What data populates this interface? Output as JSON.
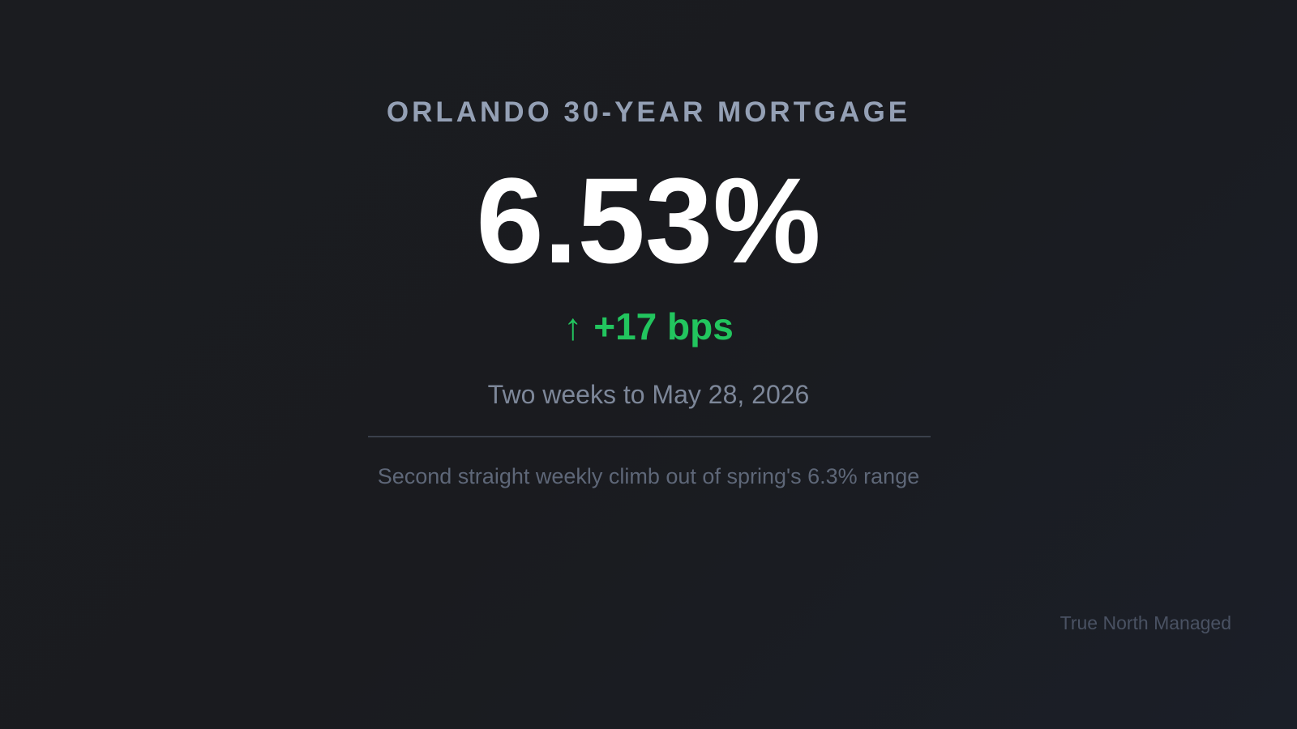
{
  "header": {
    "title": "ORLANDO 30-YEAR MORTGAGE"
  },
  "rate": {
    "value": "6.53%"
  },
  "change": {
    "arrow": "↑",
    "text": "+17 bps"
  },
  "period": "Two weeks to May 28, 2026",
  "note": "Second straight weekly climb out of spring's 6.3% range",
  "footer": "True North Managed"
}
